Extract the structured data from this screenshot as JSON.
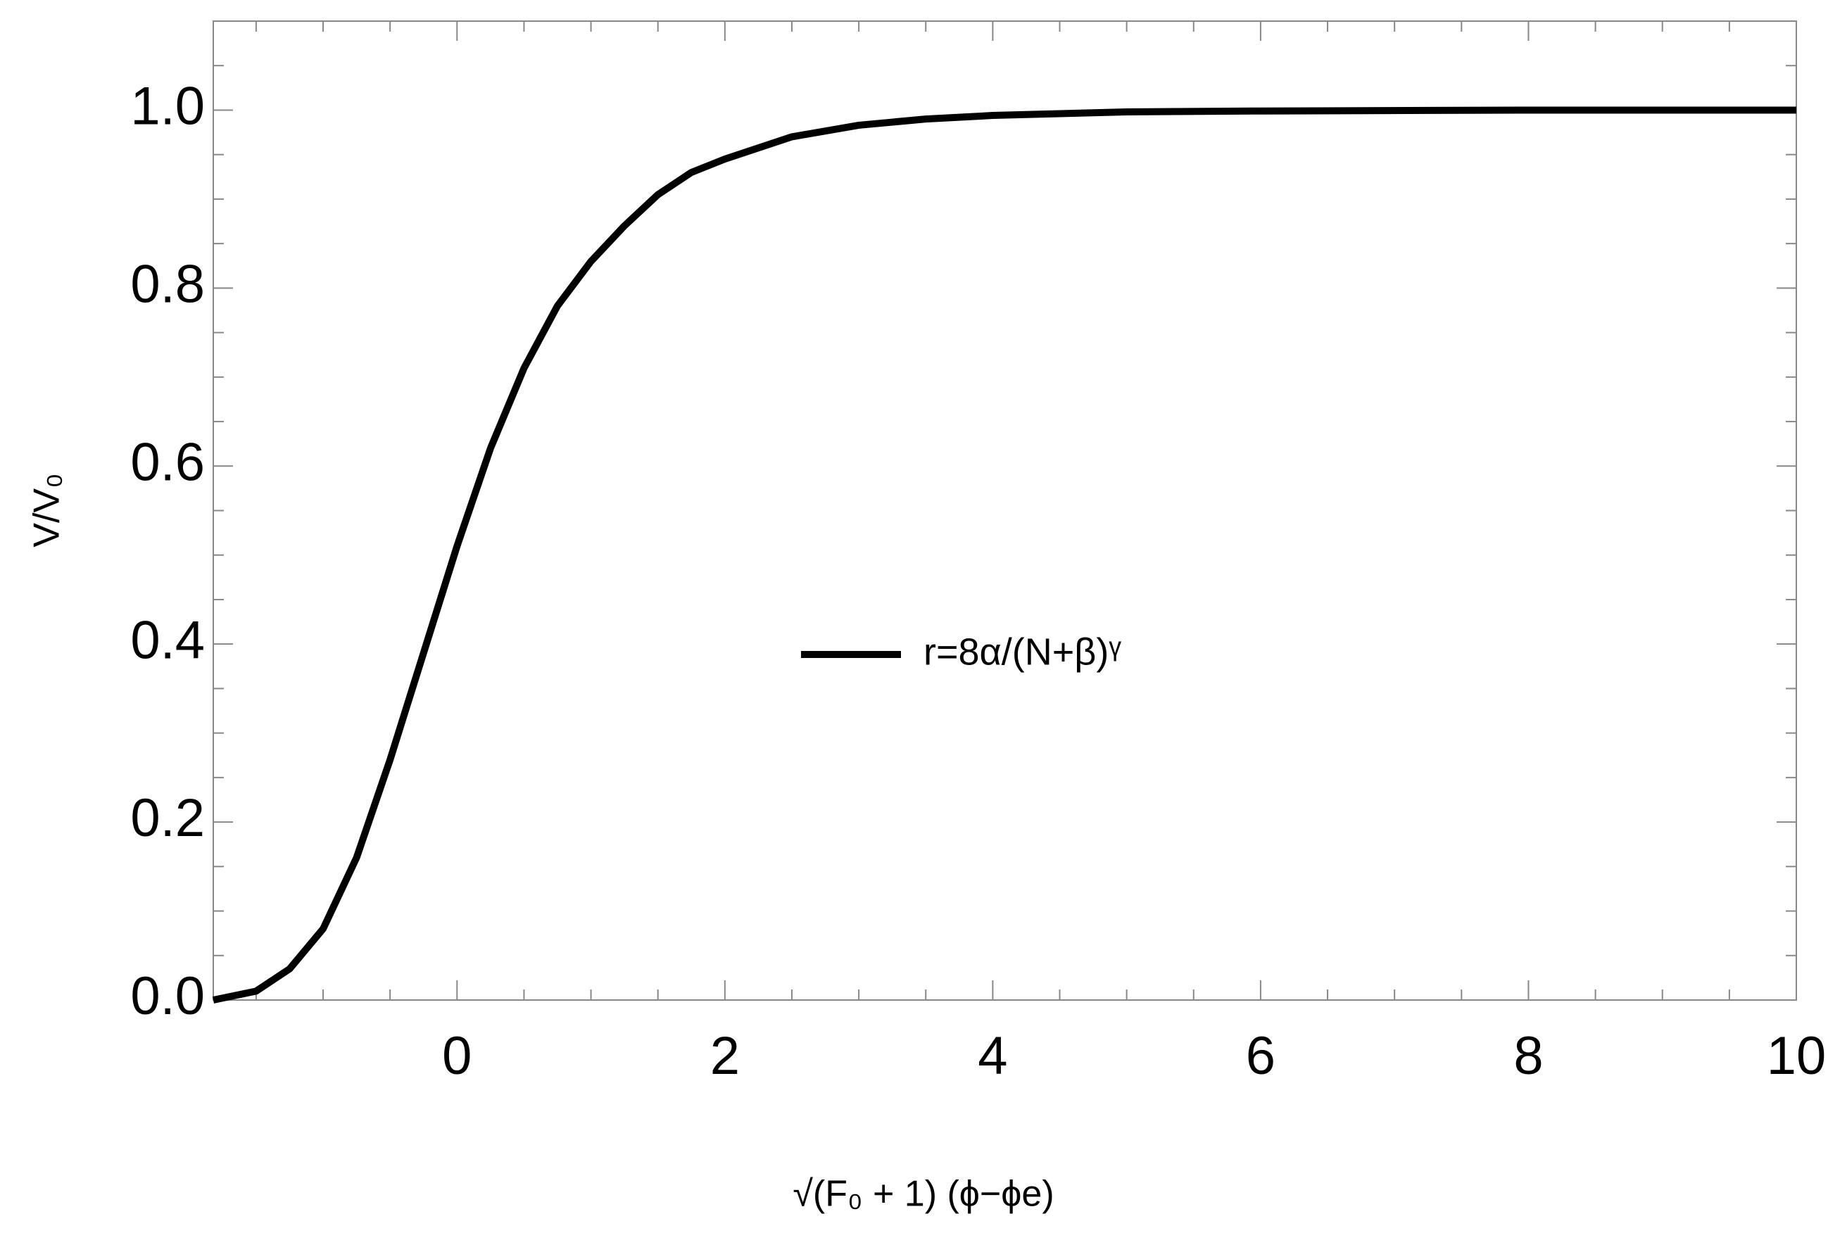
{
  "chart_data": {
    "type": "line",
    "x_label": "√(F₀ + 1) (ϕ−ϕe)",
    "y_label": "V/V₀",
    "x": [
      -1.82,
      -1.5,
      -1.25,
      -1,
      -0.75,
      -0.5,
      -0.25,
      0,
      0.25,
      0.5,
      0.75,
      1,
      1.25,
      1.5,
      1.75,
      2,
      2.5,
      3,
      3.5,
      4,
      5,
      6,
      8,
      10
    ],
    "series": [
      {
        "name": "r=8α/(N+β)ᵞ",
        "color": "#000000",
        "values": [
          0,
          0.01,
          0.035,
          0.08,
          0.16,
          0.27,
          0.39,
          0.51,
          0.62,
          0.71,
          0.78,
          0.83,
          0.87,
          0.905,
          0.93,
          0.945,
          0.97,
          0.983,
          0.99,
          0.994,
          0.998,
          0.999,
          1,
          1
        ]
      }
    ],
    "xlim": [
      -1.82,
      10
    ],
    "ylim": [
      0,
      1.1
    ],
    "xticks": [
      0,
      2,
      4,
      6,
      8,
      10
    ],
    "yticks": [
      {
        "value": 0,
        "label": "0.0"
      },
      0.2,
      0.4,
      0.6,
      0.8,
      {
        "value": 1,
        "label": "1.0"
      }
    ],
    "xminorticks": [
      -1.5,
      -1,
      -0.5,
      0.5,
      1,
      1.5,
      2.5,
      3,
      3.5,
      4.5,
      5,
      5.5,
      6.5,
      7,
      7.5,
      8.5,
      9,
      9.5
    ],
    "yminorticks": [
      0.05,
      0.1,
      0.15,
      0.25,
      0.3,
      0.35,
      0.45,
      0.5,
      0.55,
      0.65,
      0.7,
      0.75,
      0.85,
      0.9,
      0.95,
      1.05
    ],
    "grid": false,
    "legend": "center"
  }
}
